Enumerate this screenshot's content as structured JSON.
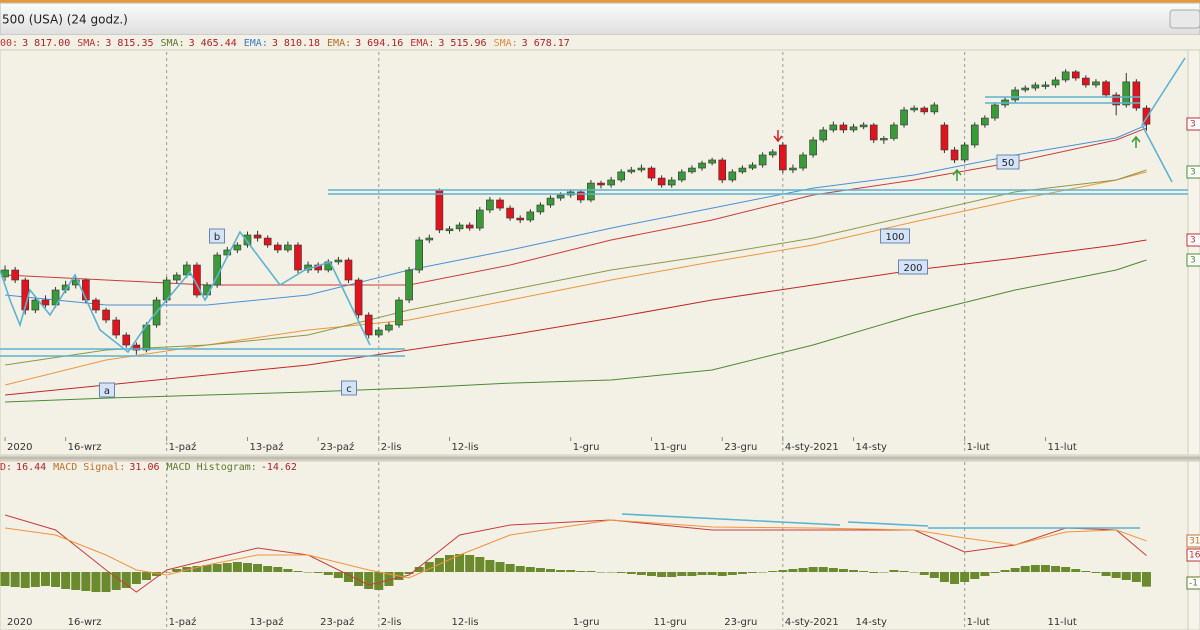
{
  "window": {
    "title": "500 (USA) (24 godz.)"
  },
  "chart_data": [
    {
      "type": "candlestick",
      "legend": [
        {
          "label": "00:",
          "value": "3 817.00",
          "color": "#c03030"
        },
        {
          "label": "SMA:",
          "value": "3 815.35",
          "color": "#c03030"
        },
        {
          "label": "SMA:",
          "value": "3 465.44",
          "color": "#5b7a2a"
        },
        {
          "label": "EMA:",
          "value": "3 810.18",
          "color": "#3c78c8"
        },
        {
          "label": "EMA:",
          "value": "3 694.16",
          "color": "#b86a20"
        },
        {
          "label": "EMA:",
          "value": "3 515.96",
          "color": "#c03030"
        },
        {
          "label": "SMA:",
          "value": "3 678.17",
          "color": "#e08a40"
        }
      ],
      "up_color": "#3a9a3a",
      "down_color": "#e0141e",
      "xlim": [
        -0.5,
        118.3
      ],
      "ylim": [
        3000,
        4000
      ],
      "xticks": [
        {
          "value": 0,
          "label": "2020"
        },
        {
          "value": 6,
          "label": "16-wrz"
        },
        {
          "value": 16,
          "label": "1-paź"
        },
        {
          "value": 24,
          "label": "13-paź"
        },
        {
          "value": 31,
          "label": "23-paź"
        },
        {
          "value": 37,
          "label": "2-lis"
        },
        {
          "value": 44,
          "label": "12-lis"
        },
        {
          "value": 56,
          "label": "1-gru"
        },
        {
          "value": 64,
          "label": "11-gru"
        },
        {
          "value": 71,
          "label": "23-gru"
        },
        {
          "value": 77,
          "label": "4-sty-2021"
        },
        {
          "value": 84,
          "label": "14-sty"
        },
        {
          "value": 95,
          "label": "1-lut"
        },
        {
          "value": 103,
          "label": "11-lut"
        }
      ],
      "xgrid": [
        2,
        5,
        10,
        12
      ],
      "candles": [
        [
          3420,
          3450,
          3410,
          3438
        ],
        [
          3438,
          3446,
          3404,
          3412
        ],
        [
          3412,
          3418,
          3322,
          3334
        ],
        [
          3334,
          3368,
          3326,
          3360
        ],
        [
          3360,
          3372,
          3340,
          3347
        ],
        [
          3347,
          3394,
          3340,
          3386
        ],
        [
          3386,
          3410,
          3378,
          3399
        ],
        [
          3399,
          3420,
          3390,
          3412
        ],
        [
          3412,
          3416,
          3352,
          3360
        ],
        [
          3360,
          3366,
          3326,
          3334
        ],
        [
          3334,
          3340,
          3300,
          3308
        ],
        [
          3308,
          3316,
          3260,
          3269
        ],
        [
          3269,
          3276,
          3236,
          3243
        ],
        [
          3243,
          3250,
          3218,
          3230
        ],
        [
          3230,
          3302,
          3224,
          3295
        ],
        [
          3295,
          3368,
          3288,
          3360
        ],
        [
          3360,
          3420,
          3352,
          3412
        ],
        [
          3412,
          3432,
          3404,
          3425
        ],
        [
          3425,
          3460,
          3418,
          3451
        ],
        [
          3451,
          3458,
          3366,
          3373
        ],
        [
          3373,
          3406,
          3366,
          3399
        ],
        [
          3399,
          3484,
          3392,
          3477
        ],
        [
          3477,
          3498,
          3470,
          3490
        ],
        [
          3490,
          3510,
          3482,
          3503
        ],
        [
          3503,
          3538,
          3496,
          3529
        ],
        [
          3529,
          3540,
          3512,
          3521
        ],
        [
          3521,
          3528,
          3496,
          3503
        ],
        [
          3503,
          3510,
          3482,
          3490
        ],
        [
          3490,
          3512,
          3484,
          3503
        ],
        [
          3503,
          3510,
          3430,
          3438
        ],
        [
          3438,
          3460,
          3430,
          3451
        ],
        [
          3451,
          3458,
          3430,
          3438
        ],
        [
          3438,
          3466,
          3432,
          3459
        ],
        [
          3459,
          3472,
          3452,
          3464
        ],
        [
          3464,
          3470,
          3404,
          3412
        ],
        [
          3412,
          3418,
          3312,
          3321
        ],
        [
          3321,
          3328,
          3260,
          3269
        ],
        [
          3269,
          3290,
          3262,
          3282
        ],
        [
          3282,
          3302,
          3276,
          3295
        ],
        [
          3295,
          3368,
          3288,
          3360
        ],
        [
          3360,
          3446,
          3352,
          3438
        ],
        [
          3438,
          3524,
          3430,
          3516
        ],
        [
          3516,
          3530,
          3508,
          3521
        ],
        [
          3646,
          3650,
          3534,
          3542
        ],
        [
          3540,
          3552,
          3532,
          3545
        ],
        [
          3545,
          3562,
          3538,
          3555
        ],
        [
          3555,
          3562,
          3540,
          3547
        ],
        [
          3547,
          3602,
          3540,
          3594
        ],
        [
          3594,
          3628,
          3586,
          3620
        ],
        [
          3620,
          3626,
          3592,
          3599
        ],
        [
          3599,
          3606,
          3566,
          3573
        ],
        [
          3573,
          3580,
          3560,
          3568
        ],
        [
          3568,
          3596,
          3562,
          3589
        ],
        [
          3589,
          3614,
          3582,
          3607
        ],
        [
          3607,
          3632,
          3600,
          3625
        ],
        [
          3625,
          3640,
          3618,
          3633
        ],
        [
          3633,
          3648,
          3626,
          3641
        ],
        [
          3641,
          3646,
          3612,
          3620
        ],
        [
          3620,
          3672,
          3614,
          3664
        ],
        [
          3664,
          3670,
          3650,
          3659
        ],
        [
          3659,
          3680,
          3652,
          3672
        ],
        [
          3672,
          3700,
          3666,
          3693
        ],
        [
          3693,
          3706,
          3688,
          3698
        ],
        [
          3698,
          3712,
          3692,
          3703
        ],
        [
          3703,
          3708,
          3670,
          3677
        ],
        [
          3677,
          3684,
          3652,
          3659
        ],
        [
          3659,
          3680,
          3652,
          3672
        ],
        [
          3672,
          3700,
          3666,
          3693
        ],
        [
          3693,
          3710,
          3688,
          3703
        ],
        [
          3703,
          3722,
          3696,
          3716
        ],
        [
          3716,
          3730,
          3710,
          3724
        ],
        [
          3724,
          3730,
          3664,
          3672
        ],
        [
          3672,
          3700,
          3666,
          3693
        ],
        [
          3693,
          3710,
          3688,
          3703
        ],
        [
          3703,
          3718,
          3698,
          3711
        ],
        [
          3711,
          3744,
          3704,
          3737
        ],
        [
          3737,
          3752,
          3730,
          3745
        ],
        [
          3763,
          3770,
          3690,
          3698
        ],
        [
          3698,
          3712,
          3690,
          3703
        ],
        [
          3703,
          3744,
          3696,
          3737
        ],
        [
          3737,
          3784,
          3730,
          3776
        ],
        [
          3776,
          3810,
          3770,
          3802
        ],
        [
          3802,
          3824,
          3796,
          3815
        ],
        [
          3815,
          3822,
          3794,
          3802
        ],
        [
          3802,
          3818,
          3796,
          3810
        ],
        [
          3810,
          3822,
          3804,
          3815
        ],
        [
          3815,
          3820,
          3768,
          3776
        ],
        [
          3776,
          3786,
          3766,
          3780
        ],
        [
          3780,
          3822,
          3774,
          3815
        ],
        [
          3815,
          3862,
          3808,
          3854
        ],
        [
          3854,
          3866,
          3848,
          3859
        ],
        [
          3859,
          3864,
          3842,
          3849
        ],
        [
          3849,
          3874,
          3842,
          3867
        ],
        [
          3815,
          3822,
          3742,
          3750
        ],
        [
          3750,
          3758,
          3716,
          3724
        ],
        [
          3724,
          3770,
          3718,
          3763
        ],
        [
          3763,
          3822,
          3756,
          3815
        ],
        [
          3815,
          3840,
          3808,
          3833
        ],
        [
          3833,
          3874,
          3826,
          3867
        ],
        [
          3867,
          3888,
          3860,
          3880
        ],
        [
          3880,
          3914,
          3874,
          3906
        ],
        [
          3906,
          3918,
          3900,
          3911
        ],
        [
          3911,
          3926,
          3904,
          3919
        ],
        [
          3915,
          3928,
          3908,
          3919
        ],
        [
          3919,
          3940,
          3912,
          3932
        ],
        [
          3932,
          3960,
          3926,
          3953
        ],
        [
          3953,
          3958,
          3930,
          3937
        ],
        [
          3937,
          3944,
          3912,
          3919
        ],
        [
          3919,
          3934,
          3912,
          3927
        ],
        [
          3927,
          3932,
          3886,
          3893
        ],
        [
          3893,
          3900,
          3840,
          3867
        ],
        [
          3867,
          3950,
          3860,
          3927
        ],
        [
          3927,
          3934,
          3852,
          3859
        ],
        [
          3859,
          3866,
          3800,
          3817
        ]
      ],
      "series": [
        {
          "color": "#4a8fd8",
          "x": [
            0,
            10,
            20,
            30,
            40,
            50,
            60,
            70,
            80,
            90,
            100,
            110,
            113
          ],
          "values": [
            3373,
            3347,
            3347,
            3373,
            3438,
            3490,
            3547,
            3599,
            3651,
            3685,
            3737,
            3781,
            3815
          ]
        },
        {
          "color": "#c83c3c",
          "x": [
            0,
            10,
            20,
            30,
            40,
            50,
            60,
            70,
            80,
            90,
            100,
            110,
            113
          ],
          "values": [
            3425,
            3412,
            3399,
            3399,
            3399,
            3451,
            3516,
            3568,
            3633,
            3672,
            3719,
            3776,
            3807
          ]
        },
        {
          "color": "#f0943c",
          "x": [
            0,
            10,
            20,
            30,
            40,
            50,
            60,
            70,
            80,
            90,
            100,
            110,
            113
          ],
          "values": [
            3139,
            3204,
            3243,
            3282,
            3308,
            3360,
            3412,
            3459,
            3503,
            3563,
            3620,
            3672,
            3693
          ]
        },
        {
          "color": "#8a9a4a",
          "x": [
            0,
            10,
            20,
            30,
            40,
            50,
            60,
            70,
            80,
            90,
            100,
            110,
            113
          ],
          "values": [
            3191,
            3230,
            3243,
            3269,
            3334,
            3386,
            3438,
            3477,
            3521,
            3581,
            3641,
            3672,
            3698
          ]
        },
        {
          "color": "#c02828",
          "x": [
            0,
            10,
            20,
            30,
            40,
            50,
            60,
            70,
            80,
            90,
            100,
            110,
            113
          ],
          "values": [
            3113,
            3139,
            3165,
            3191,
            3230,
            3269,
            3313,
            3360,
            3399,
            3438,
            3469,
            3503,
            3516
          ]
        },
        {
          "color": "#4e8a2e",
          "x": [
            0,
            10,
            20,
            30,
            40,
            50,
            60,
            70,
            80,
            90,
            100,
            110,
            113
          ],
          "values": [
            3095,
            3105,
            3113,
            3121,
            3131,
            3144,
            3152,
            3178,
            3243,
            3321,
            3386,
            3438,
            3464
          ]
        }
      ],
      "annotations": [
        "a",
        "b",
        "c",
        "50",
        "100",
        "200"
      ],
      "right_labels": [
        {
          "text": "3",
          "color": "#c03030"
        },
        {
          "text": "3",
          "color": "#4e8a2e"
        },
        {
          "text": "3",
          "color": "#c03030"
        },
        {
          "text": "3",
          "color": "#4e8a2e"
        }
      ]
    },
    {
      "type": "macd",
      "legend": [
        {
          "label": "D:",
          "value": "16.44",
          "color": "#c03030"
        },
        {
          "label": "MACD Signal:",
          "value": "31.06",
          "color": "#c0702a"
        },
        {
          "label": "MACD Histogram:",
          "value": "-14.62",
          "color": "#5b7a2a"
        }
      ],
      "ylim": [
        -50,
        110
      ],
      "hist_color": "#6b8a2e",
      "histogram": [
        -14,
        -15,
        -16,
        -15,
        -14,
        -15,
        -17,
        -18,
        -19,
        -20,
        -20,
        -18,
        -16,
        -12,
        -8,
        -4,
        0,
        3,
        5,
        6,
        7,
        8,
        9,
        10,
        9,
        8,
        6,
        5,
        3,
        1,
        0,
        -1,
        -3,
        -6,
        -10,
        -14,
        -17,
        -18,
        -14,
        -8,
        -2,
        5,
        10,
        14,
        17,
        18,
        17,
        15,
        12,
        10,
        8,
        6,
        5,
        4,
        3,
        2,
        2,
        1,
        1,
        0,
        0,
        -1,
        -2,
        -3,
        -4,
        -5,
        -5,
        -4,
        -4,
        -3,
        -3,
        -4,
        -3,
        -2,
        -1,
        0,
        1,
        2,
        3,
        4,
        5,
        5,
        4,
        3,
        2,
        1,
        -1,
        0,
        2,
        1,
        0,
        -3,
        -6,
        -10,
        -12,
        -10,
        -7,
        -4,
        -1,
        2,
        4,
        6,
        7,
        7,
        6,
        5,
        3,
        1,
        -1,
        -4,
        -6,
        -8,
        -10,
        -14.62
      ],
      "series": [
        {
          "color": "#c83c3c",
          "x": [
            0,
            5,
            10,
            13,
            16,
            20,
            25,
            30,
            36,
            40,
            45,
            50,
            60,
            70,
            80,
            90,
            95,
            100,
            105,
            110,
            113
          ],
          "values": [
            57,
            42,
            2,
            -20,
            2,
            12,
            24,
            17,
            -13,
            -3,
            37,
            47,
            52,
            42,
            42,
            42,
            20,
            27,
            44,
            42,
            16.44
          ]
        },
        {
          "color": "#f0943c",
          "x": [
            0,
            5,
            10,
            13,
            16,
            20,
            25,
            30,
            36,
            40,
            45,
            50,
            60,
            70,
            80,
            90,
            95,
            100,
            105,
            110,
            113
          ],
          "values": [
            44,
            37,
            17,
            2,
            -3,
            7,
            17,
            17,
            2,
            -6,
            17,
            37,
            52,
            45,
            44,
            42,
            34,
            27,
            40,
            42,
            31.06
          ]
        }
      ],
      "right_labels": [
        {
          "text": "31",
          "color": "#c0702a"
        },
        {
          "text": "16",
          "color": "#c03030"
        },
        {
          "text": "-1",
          "color": "#5b7a2a"
        }
      ]
    }
  ]
}
